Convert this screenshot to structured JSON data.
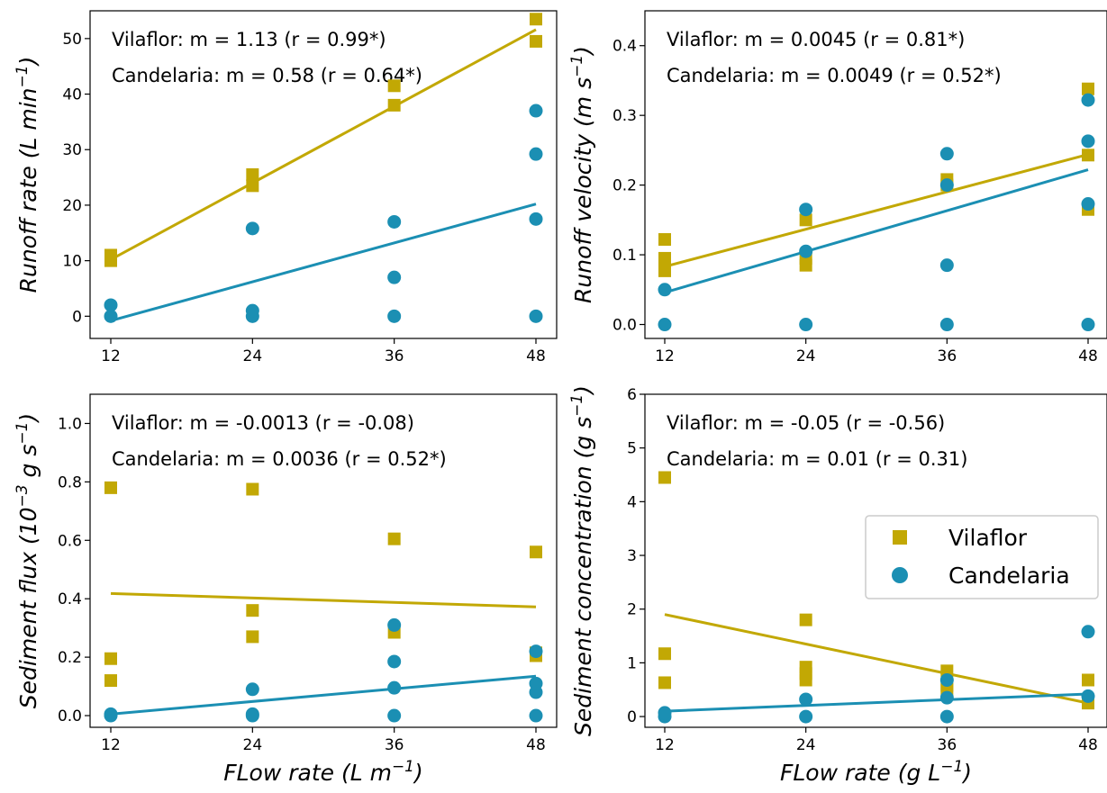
{
  "colors": {
    "vilaflor": "#c2a804",
    "candelaria": "#1b8fb3"
  },
  "legend": {
    "vilaflor": "Vilaflor",
    "candelaria": "Candelaria"
  },
  "chart_data": [
    {
      "type": "scatter",
      "ylabel_main": "Runoff rate (",
      "ylabel_unit": "L min",
      "ylabel_exp": "−1",
      "ylabel_close": ")",
      "xlabel": "",
      "xticks": [
        12,
        24,
        36,
        48
      ],
      "ylim": [
        -4,
        55
      ],
      "yticks": [
        0,
        10,
        20,
        30,
        40,
        50
      ],
      "annotation_1": "Vilaflor: m = 1.13 (r = 0.99*)",
      "annotation_2": "Candelaria: m = 0.58 (r = 0.64*)",
      "series": [
        {
          "name": "Vilaflor",
          "marker": "square",
          "x": [
            12,
            12,
            24,
            24,
            36,
            36,
            48,
            48
          ],
          "y": [
            10,
            11,
            23.5,
            25.5,
            38,
            41.5,
            49.5,
            53.5
          ],
          "fit": [
            [
              12,
              10.2
            ],
            [
              48,
              51.6
            ]
          ]
        },
        {
          "name": "Candelaria",
          "marker": "circle",
          "x": [
            12,
            12,
            24,
            24,
            24,
            36,
            36,
            36,
            48,
            48,
            48,
            48
          ],
          "y": [
            0,
            2,
            0,
            1,
            15.8,
            0,
            7,
            17,
            0,
            17.5,
            29.2,
            37
          ],
          "fit": [
            [
              12,
              -0.8
            ],
            [
              48,
              20.2
            ]
          ]
        }
      ]
    },
    {
      "type": "scatter",
      "ylabel_main": "Runoff velocity (",
      "ylabel_unit": "m s",
      "ylabel_exp": "−1",
      "ylabel_close": ")",
      "xlabel": "",
      "xticks": [
        12,
        24,
        36,
        48
      ],
      "ylim": [
        -0.02,
        0.45
      ],
      "yticks": [
        0.0,
        0.1,
        0.2,
        0.3,
        0.4
      ],
      "ytick_labels": [
        "0.0",
        "0.1",
        "0.2",
        "0.3",
        "0.4"
      ],
      "annotation_1": "Vilaflor: m = 0.0045 (r = 0.81*)",
      "annotation_2": "Candelaria: m = 0.0049 (r = 0.52*)",
      "series": [
        {
          "name": "Vilaflor",
          "marker": "square",
          "x": [
            12,
            12,
            12,
            12,
            24,
            24,
            24,
            36,
            36,
            48,
            48,
            48
          ],
          "y": [
            0.077,
            0.087,
            0.095,
            0.122,
            0.085,
            0.095,
            0.15,
            0.2,
            0.208,
            0.165,
            0.243,
            0.338
          ],
          "fit": [
            [
              12,
              0.083
            ],
            [
              48,
              0.244
            ]
          ]
        },
        {
          "name": "Candelaria",
          "marker": "circle",
          "x": [
            12,
            12,
            24,
            24,
            24,
            36,
            36,
            36,
            36,
            48,
            48,
            48,
            48
          ],
          "y": [
            0,
            0.05,
            0,
            0.105,
            0.165,
            0.2,
            0,
            0.085,
            0.245,
            0.322,
            0,
            0.173,
            0.263
          ],
          "fit": [
            [
              12,
              0.046
            ],
            [
              48,
              0.222
            ]
          ]
        }
      ]
    },
    {
      "type": "scatter",
      "ylabel_main": "Sediment flux (10",
      "ylabel_unit": " g s",
      "ylabel_exp_a": "−3",
      "ylabel_exp": "−1",
      "ylabel_close": ")",
      "xlabel_main": "FLow rate (",
      "xlabel_unit": "L m",
      "xlabel_exp": "−1",
      "xlabel_close": ")",
      "xticks": [
        12,
        24,
        36,
        48
      ],
      "ylim": [
        -0.04,
        1.1
      ],
      "yticks": [
        0.0,
        0.2,
        0.4,
        0.6,
        0.8,
        1.0
      ],
      "ytick_labels": [
        "0.0",
        "0.2",
        "0.4",
        "0.6",
        "0.8",
        "1.0"
      ],
      "annotation_1": "Vilaflor: m = -0.0013 (r = -0.08)",
      "annotation_2": "Candelaria: m = 0.0036 (r = 0.52*)",
      "series": [
        {
          "name": "Vilaflor",
          "marker": "square",
          "x": [
            12,
            12,
            12,
            24,
            24,
            24,
            36,
            36,
            48,
            48,
            48
          ],
          "y": [
            0.12,
            0.195,
            0.78,
            0.27,
            0.36,
            0.775,
            0.285,
            0.605,
            0.205,
            0.215,
            0.56
          ],
          "fit": [
            [
              12,
              0.418
            ],
            [
              48,
              0.372
            ]
          ]
        },
        {
          "name": "Candelaria",
          "marker": "circle",
          "x": [
            12,
            12,
            24,
            24,
            24,
            36,
            36,
            36,
            36,
            48,
            48,
            48,
            48
          ],
          "y": [
            0,
            0.005,
            0,
            0.005,
            0.09,
            0,
            0.095,
            0.185,
            0.31,
            0,
            0.08,
            0.11,
            0.22
          ],
          "fit": [
            [
              12,
              0.005
            ],
            [
              48,
              0.135
            ]
          ]
        }
      ]
    },
    {
      "type": "scatter",
      "ylabel_main": "Sediment concentration (",
      "ylabel_unit": "g s",
      "ylabel_exp": "−1",
      "ylabel_close": ")",
      "xlabel_main": "FLow rate (",
      "xlabel_unit": "g L",
      "xlabel_exp": "−1",
      "xlabel_close": ")",
      "xticks": [
        12,
        24,
        36,
        48
      ],
      "ylim": [
        -0.2,
        6
      ],
      "yticks": [
        0,
        1,
        2,
        3,
        4,
        5,
        6
      ],
      "annotation_1": "Vilaflor: m = -0.05 (r = -0.56)",
      "annotation_2": "Candelaria: m = 0.01 (r = 0.31)",
      "legend": "right",
      "series": [
        {
          "name": "Vilaflor",
          "marker": "square",
          "x": [
            12,
            12,
            12,
            24,
            24,
            24,
            24,
            36,
            36,
            36,
            48,
            48
          ],
          "y": [
            0.63,
            1.17,
            4.45,
            0.68,
            0.8,
            0.92,
            1.8,
            0.5,
            0.58,
            0.85,
            0.25,
            0.68
          ],
          "fit": [
            [
              12,
              1.9
            ],
            [
              48,
              0.25
            ]
          ]
        },
        {
          "name": "Candelaria",
          "marker": "circle",
          "x": [
            12,
            12,
            24,
            24,
            36,
            36,
            36,
            48,
            48
          ],
          "y": [
            0,
            0.07,
            0,
            0.32,
            0,
            0.35,
            0.68,
            1.58,
            0.38
          ],
          "fit": [
            [
              12,
              0.1
            ],
            [
              48,
              0.42
            ]
          ]
        }
      ]
    }
  ]
}
